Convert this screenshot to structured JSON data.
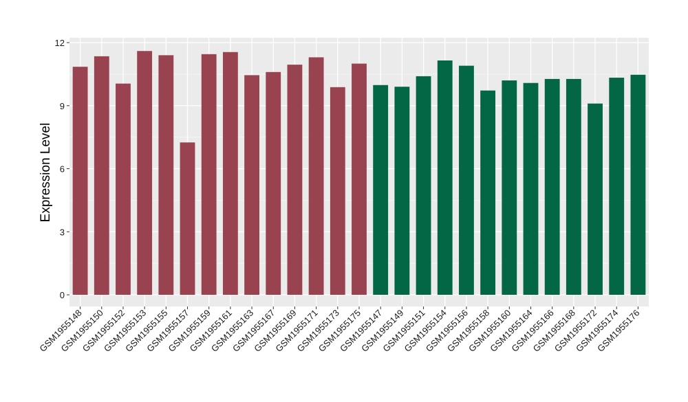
{
  "chart_data": {
    "type": "bar",
    "title": "",
    "xlabel": "",
    "ylabel": "Expression Level",
    "ylim": [
      0,
      12.3
    ],
    "yticks": [
      0,
      3,
      6,
      9,
      12
    ],
    "grid": true,
    "legend": "none",
    "colors": {
      "group_a": "#9a4350",
      "group_b": "#036645",
      "panel": "#ebebeb",
      "gridline": "#ffffff"
    },
    "categories": [
      "GSM1955148",
      "GSM1955150",
      "GSM1955152",
      "GSM1955153",
      "GSM1955155",
      "GSM1955157",
      "GSM1955159",
      "GSM1955161",
      "GSM1955163",
      "GSM1955167",
      "GSM1955169",
      "GSM1955171",
      "GSM1955173",
      "GSM1955175",
      "GSM1955147",
      "GSM1955149",
      "GSM1955151",
      "GSM1955154",
      "GSM1955156",
      "GSM1955158",
      "GSM1955160",
      "GSM1955164",
      "GSM1955166",
      "GSM1955168",
      "GSM1955172",
      "GSM1955174",
      "GSM1955176"
    ],
    "values": [
      10.85,
      11.35,
      10.05,
      11.6,
      11.4,
      7.25,
      11.45,
      11.55,
      10.45,
      10.6,
      10.95,
      11.3,
      9.88,
      11.0,
      9.98,
      9.9,
      10.4,
      11.15,
      10.9,
      9.72,
      10.2,
      10.08,
      10.27,
      10.27,
      9.1,
      10.33,
      10.47
    ],
    "groups": [
      "a",
      "a",
      "a",
      "a",
      "a",
      "a",
      "a",
      "a",
      "a",
      "a",
      "a",
      "a",
      "a",
      "a",
      "b",
      "b",
      "b",
      "b",
      "b",
      "b",
      "b",
      "b",
      "b",
      "b",
      "b",
      "b",
      "b"
    ]
  }
}
